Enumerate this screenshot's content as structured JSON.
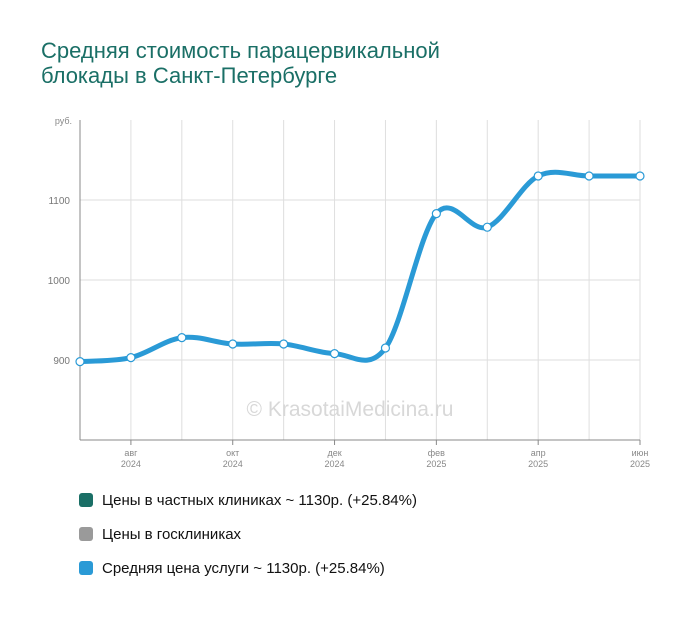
{
  "chart_data": {
    "type": "line",
    "title_lines": [
      "Средняя стоимость парацервикальной",
      "блокады в Санкт-Петербурге"
    ],
    "y_unit": "руб.",
    "ylim": [
      800,
      1200
    ],
    "y_ticks": [
      900,
      1000,
      1100
    ],
    "x_tick_labels": [
      {
        "month": "авг",
        "year": "2024"
      },
      {
        "month": "окт",
        "year": "2024"
      },
      {
        "month": "дек",
        "year": "2024"
      },
      {
        "month": "фев",
        "year": "2025"
      },
      {
        "month": "апр",
        "year": "2025"
      },
      {
        "month": "июн",
        "year": "2025"
      }
    ],
    "x": [
      "2024-07",
      "2024-08",
      "2024-09",
      "2024-10",
      "2024-11",
      "2024-12",
      "2025-01",
      "2025-02",
      "2025-03",
      "2025-04",
      "2025-05",
      "2025-06"
    ],
    "series": [
      {
        "name": "Средняя цена услуги",
        "color": "#2a9ad6",
        "values": [
          898,
          903,
          928,
          920,
          920,
          908,
          915,
          1083,
          1066,
          1130,
          1130,
          1130
        ]
      }
    ],
    "grid": true,
    "legend_position": "bottom"
  },
  "watermark": "© KrasotaiMedicina.ru",
  "legend": [
    {
      "label": "Цены в частных клиниках ~ 1130р. (+25.84%)",
      "color": "#1a6f66"
    },
    {
      "label": "Цены в госклиниках",
      "color": "#9a9a9a"
    },
    {
      "label": "Средняя цена услуги ~ 1130р. (+25.84%)",
      "color": "#2a9ad6"
    }
  ]
}
